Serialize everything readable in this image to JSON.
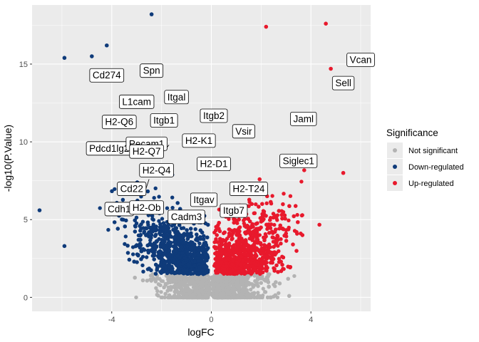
{
  "chart_data": {
    "type": "scatter",
    "xlabel": "logFC",
    "ylabel": "-log10(P.Value)",
    "xlim": [
      -7.2,
      6.4
    ],
    "ylim": [
      -0.9,
      18.8
    ],
    "x_ticks": [
      -4,
      0,
      4
    ],
    "x_tick_labels": [
      "-4",
      "0",
      "4"
    ],
    "y_ticks": [
      0,
      5,
      10,
      15
    ],
    "y_tick_labels": [
      "0",
      "5",
      "10",
      "15"
    ],
    "grid": true,
    "legend_position": "right",
    "legend": {
      "title": "Significance",
      "entries": [
        {
          "label": "Not significant",
          "color": "#b3b3b3"
        },
        {
          "label": "Down-regulated",
          "color": "#0f3b7a"
        },
        {
          "label": "Up-regulated",
          "color": "#e8192c"
        }
      ]
    },
    "colors": {
      "not_significant": "#b3b3b3",
      "down": "#0f3b7a",
      "up": "#e8192c",
      "panel_bg": "#ebebeb",
      "grid": "#ffffff"
    },
    "highlight_points": [
      {
        "x": -2.4,
        "y": 18.2,
        "group": "down"
      },
      {
        "x": -4.2,
        "y": 16.2,
        "group": "down"
      },
      {
        "x": -4.8,
        "y": 15.5,
        "group": "down"
      },
      {
        "x": -5.9,
        "y": 15.4,
        "group": "down"
      },
      {
        "x": -6.9,
        "y": 5.6,
        "group": "down"
      },
      {
        "x": -5.9,
        "y": 3.3,
        "group": "down"
      },
      {
        "x": 2.2,
        "y": 17.4,
        "group": "up"
      },
      {
        "x": 4.6,
        "y": 17.6,
        "group": "up"
      },
      {
        "x": 6.1,
        "y": 15.3,
        "group": "up"
      },
      {
        "x": 4.8,
        "y": 14.7,
        "group": "up"
      },
      {
        "x": 5.3,
        "y": 8.0,
        "group": "up"
      }
    ],
    "labels": [
      {
        "text": "Vcan",
        "x": 6.0,
        "y": 15.3
      },
      {
        "text": "Sell",
        "x": 5.3,
        "y": 13.8
      },
      {
        "text": "Spn",
        "x": -2.4,
        "y": 14.6
      },
      {
        "text": "Cd274",
        "x": -4.2,
        "y": 14.3
      },
      {
        "text": "L1cam",
        "x": -3.0,
        "y": 12.6
      },
      {
        "text": "Itgal",
        "x": -1.4,
        "y": 12.9
      },
      {
        "text": "Itgb2",
        "x": 0.1,
        "y": 11.7
      },
      {
        "text": "H2-Q6",
        "x": -3.7,
        "y": 11.3
      },
      {
        "text": "Itgb1",
        "x": -1.9,
        "y": 11.4
      },
      {
        "text": "Jaml",
        "x": 3.7,
        "y": 11.5
      },
      {
        "text": "Vsir",
        "x": 1.3,
        "y": 10.7
      },
      {
        "text": "H2-K1",
        "x": -0.5,
        "y": 10.1
      },
      {
        "text": "Pdcd1lg2",
        "x": -4.1,
        "y": 9.6
      },
      {
        "text": "Pecam1",
        "x": -2.6,
        "y": 9.9
      },
      {
        "text": "H2-Q7",
        "x": -2.6,
        "y": 9.4
      },
      {
        "text": "H2-D1",
        "x": 0.1,
        "y": 8.6
      },
      {
        "text": "Siglec1",
        "x": 3.5,
        "y": 8.8
      },
      {
        "text": "H2-Q4",
        "x": -2.2,
        "y": 8.2
      },
      {
        "text": "Cd22",
        "x": -3.2,
        "y": 7.0
      },
      {
        "text": "H2-T24",
        "x": 1.5,
        "y": 7.0
      },
      {
        "text": "Itgav",
        "x": -0.3,
        "y": 6.3
      },
      {
        "text": "Cdh1",
        "x": -3.7,
        "y": 5.7
      },
      {
        "text": "H2-Ob",
        "x": -2.6,
        "y": 5.8
      },
      {
        "text": "Itgb7",
        "x": 0.9,
        "y": 5.6
      },
      {
        "text": "Cadm3",
        "x": -1.0,
        "y": 5.2
      }
    ]
  }
}
